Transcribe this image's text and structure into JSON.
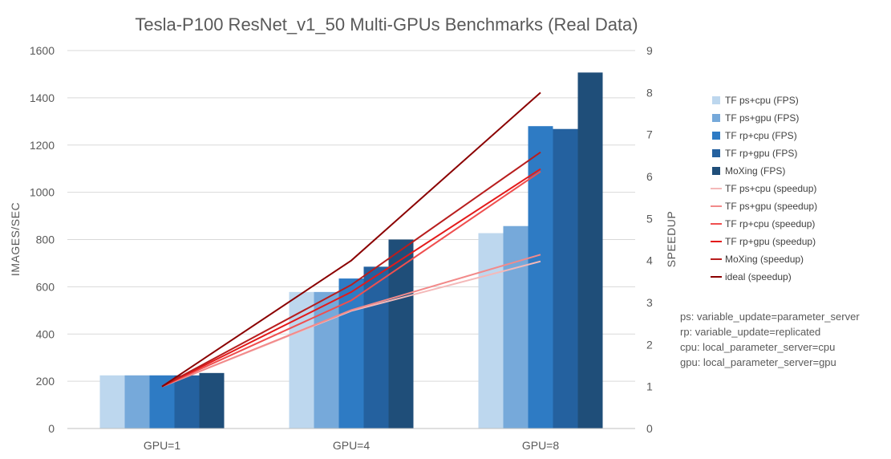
{
  "chart_data": {
    "type": "bar",
    "title": "Tesla-P100 ResNet_v1_50 Multi-GPUs Benchmarks (Real Data)",
    "categories": [
      "GPU=1",
      "GPU=4",
      "GPU=8"
    ],
    "ylabel": "IMAGES/SEC",
    "y2label": "SPEEDUP",
    "ylim": [
      0,
      1600
    ],
    "y2lim": [
      0,
      9
    ],
    "yticks": [
      "0",
      "200",
      "400",
      "600",
      "800",
      "1000",
      "1200",
      "1400",
      "1600"
    ],
    "y2ticks": [
      "0",
      "1",
      "2",
      "3",
      "4",
      "5",
      "6",
      "7",
      "8",
      "9"
    ],
    "grid": true,
    "legend_position": "right",
    "series": [
      {
        "name": "TF ps+cpu (FPS)",
        "kind": "bar",
        "axis": "left",
        "color": "#bdd7ee",
        "values": [
          225,
          578,
          827
        ]
      },
      {
        "name": "TF ps+gpu (FPS)",
        "kind": "bar",
        "axis": "left",
        "color": "#76a9da",
        "values": [
          225,
          578,
          857
        ]
      },
      {
        "name": "TF rp+cpu (FPS)",
        "kind": "bar",
        "axis": "left",
        "color": "#2e7bc4",
        "values": [
          225,
          635,
          1280
        ]
      },
      {
        "name": "TF rp+gpu (FPS)",
        "kind": "bar",
        "axis": "left",
        "color": "#24619f",
        "values": [
          225,
          685,
          1268
        ]
      },
      {
        "name": "MoXing (FPS)",
        "kind": "bar",
        "axis": "left",
        "color": "#1f4e79",
        "values": [
          235,
          800,
          1507
        ]
      },
      {
        "name": "TF ps+cpu (speedup)",
        "kind": "line",
        "axis": "right",
        "color": "#f4b9b9",
        "values": [
          1,
          2.8,
          3.98
        ]
      },
      {
        "name": "TF ps+gpu (speedup)",
        "kind": "line",
        "axis": "right",
        "color": "#f28a8a",
        "values": [
          1,
          2.82,
          4.14
        ]
      },
      {
        "name": "TF rp+cpu (speedup)",
        "kind": "line",
        "axis": "right",
        "color": "#ef4f4f",
        "values": [
          1,
          3.05,
          6.12
        ]
      },
      {
        "name": "TF rp+gpu (speedup)",
        "kind": "line",
        "axis": "right",
        "color": "#e31a1a",
        "values": [
          1,
          3.25,
          6.18
        ]
      },
      {
        "name": "MoXing (speedup)",
        "kind": "line",
        "axis": "right",
        "color": "#b81e1e",
        "values": [
          1,
          3.42,
          6.58
        ]
      },
      {
        "name": "ideal (speedup)",
        "kind": "line",
        "axis": "right",
        "color": "#8b0000",
        "values": [
          1,
          4,
          8
        ]
      }
    ],
    "notes": [
      "ps: variable_update=parameter_server",
      "rp: variable_update=replicated",
      "cpu: local_parameter_server=cpu",
      "gpu: local_parameter_server=gpu"
    ]
  }
}
